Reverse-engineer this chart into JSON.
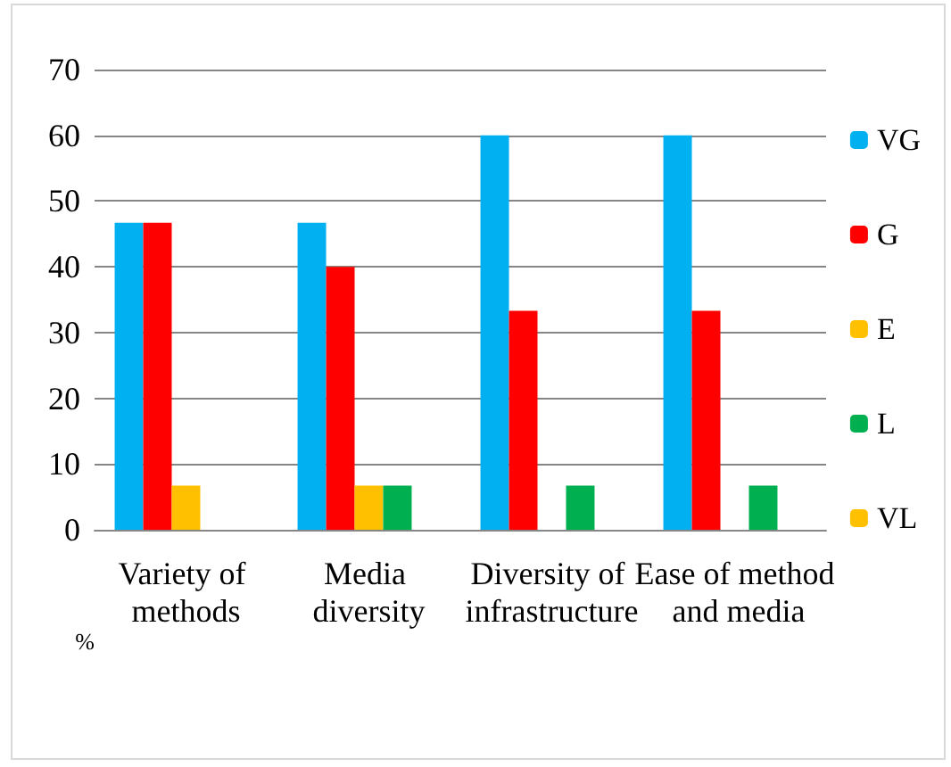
{
  "chart_data": {
    "type": "bar",
    "ylabel": "%",
    "categories": [
      "Variety of methods",
      "Media diversity",
      "Diversity of infrastructure",
      "Ease of method and media"
    ],
    "series": [
      {
        "name": "VG",
        "color": "#00b0f0",
        "values": [
          46.7,
          46.7,
          60,
          60
        ]
      },
      {
        "name": "G",
        "color": "#ff0000",
        "values": [
          46.7,
          40,
          33.3,
          33.3
        ]
      },
      {
        "name": "E",
        "color": "#ffc000",
        "values": [
          6.7,
          6.7,
          0,
          0
        ]
      },
      {
        "name": "L",
        "color": "#00b050",
        "values": [
          0,
          6.7,
          6.7,
          6.7
        ]
      },
      {
        "name": "VL",
        "color": "#ffc000",
        "values": [
          0,
          0,
          0,
          0
        ]
      }
    ],
    "ylim": [
      0,
      70
    ],
    "yticks": [
      0,
      10,
      20,
      30,
      40,
      50,
      60,
      70
    ],
    "grid": "y",
    "legend": "right"
  }
}
